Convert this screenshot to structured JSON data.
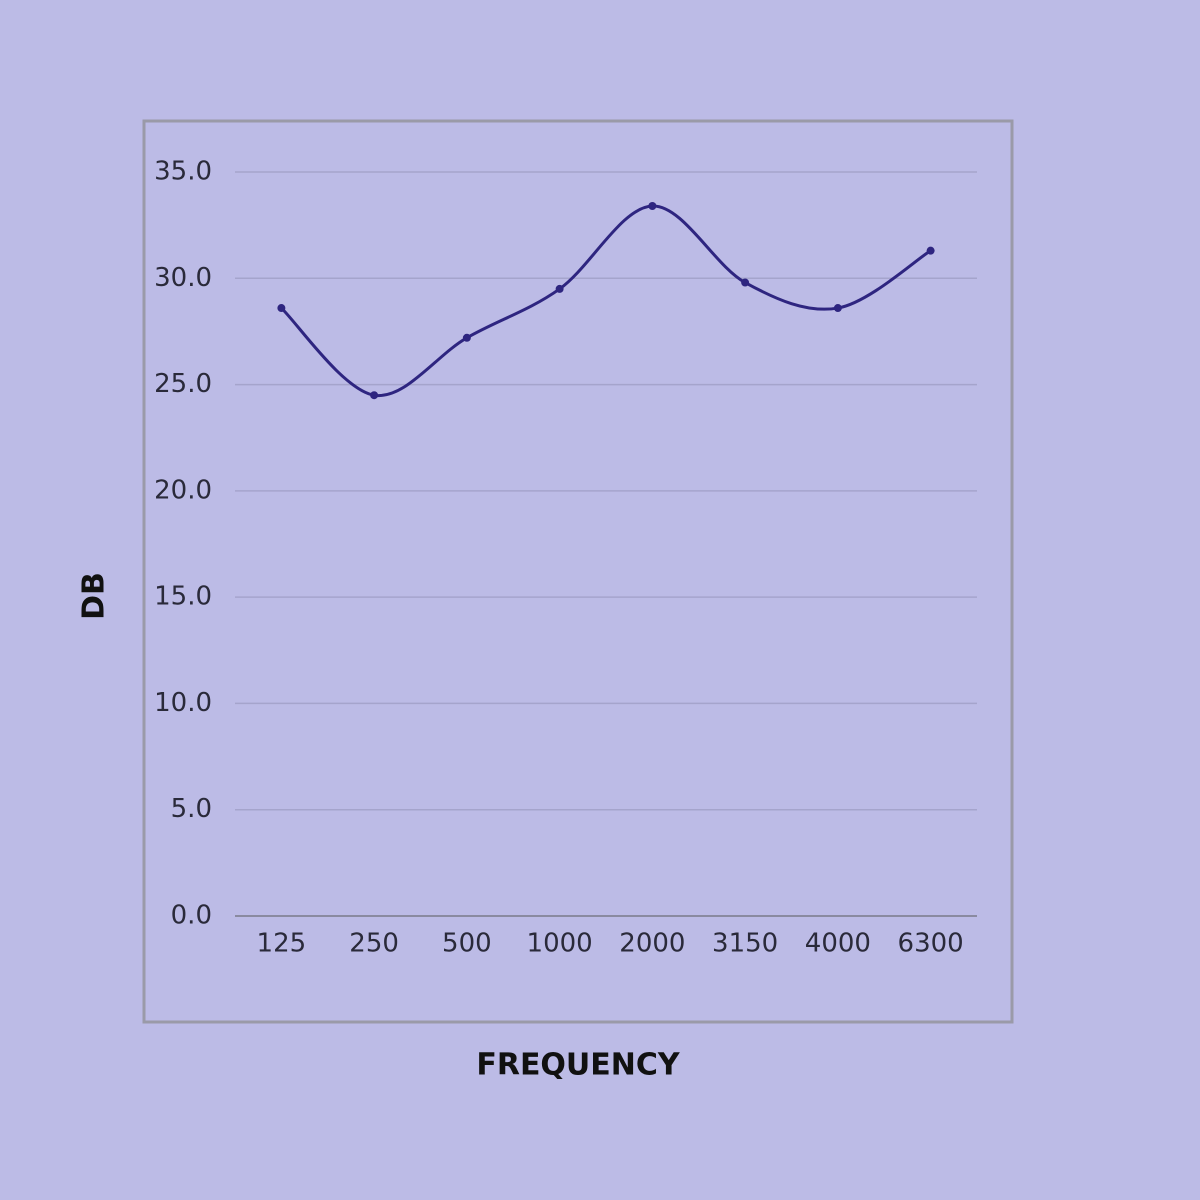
{
  "chart_data": {
    "type": "line",
    "x_label": "FREQUENCY",
    "y_label": "DB",
    "categories": [
      "125",
      "250",
      "500",
      "1000",
      "2000",
      "3150",
      "4000",
      "6300"
    ],
    "series": [
      {
        "name": null,
        "color": "#2e2580",
        "values": [
          28.6,
          24.5,
          27.2,
          29.5,
          33.4,
          29.8,
          28.6,
          31.3
        ]
      }
    ],
    "ylim": [
      0,
      35
    ],
    "yticks": [
      {
        "value": 0,
        "label": "0.0"
      },
      {
        "value": 5,
        "label": "5.0"
      },
      {
        "value": 10,
        "label": "10.0"
      },
      {
        "value": 15,
        "label": "15.0"
      },
      {
        "value": 20,
        "label": "20.0"
      },
      {
        "value": 25,
        "label": "25.0"
      },
      {
        "value": 30,
        "label": "30.0"
      },
      {
        "value": 35,
        "label": "35.0"
      }
    ],
    "grid": true,
    "smooth": true
  }
}
